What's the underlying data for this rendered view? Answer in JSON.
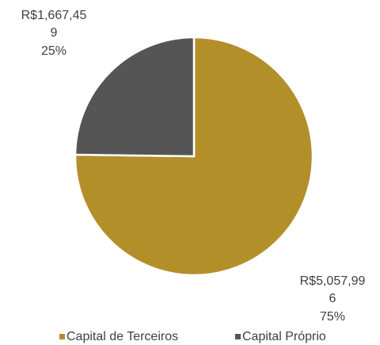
{
  "chart_data": {
    "type": "pie",
    "categories": [
      "Capital de Terceiros",
      "Capital Próprio"
    ],
    "values": [
      5057996,
      1667459
    ],
    "value_labels": [
      "R$5,057,996",
      "R$1,667,459"
    ],
    "percents": [
      75,
      25
    ],
    "percent_labels": [
      "75%",
      "25%"
    ],
    "colors": [
      "#b38f2a",
      "#555555"
    ],
    "legend": "bottom"
  }
}
